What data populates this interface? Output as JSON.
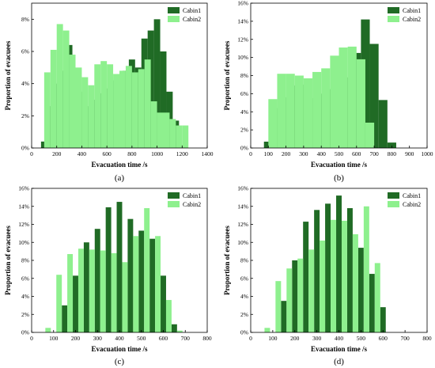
{
  "colors": {
    "cabin1": "#206b25",
    "cabin2": "#8ef08e",
    "axis": "#000000"
  },
  "chart_data": [
    {
      "type": "bar",
      "panel_label": "(a)",
      "xlabel": "Evacuation time /s",
      "ylabel": "Proportion of evacuees",
      "xlim": [
        0,
        1400
      ],
      "ylim": [
        0,
        0.09
      ],
      "x_ticks": [
        0,
        200,
        400,
        600,
        800,
        1000,
        1200,
        1400
      ],
      "x_tick_labels": [
        "0",
        "200",
        "400",
        "600",
        "800",
        "1000",
        "1200",
        "1400"
      ],
      "y_ticks": [
        0,
        0.02,
        0.04,
        0.06,
        0.08
      ],
      "y_tick_labels": [
        "0%",
        "2%",
        "4%",
        "6%",
        "8%"
      ],
      "bin_width": 50,
      "legend_position": "top-right",
      "series": [
        {
          "name": "Cabin1",
          "x": [
            100,
            150,
            200,
            250,
            300,
            350,
            400,
            450,
            500,
            550,
            600,
            650,
            700,
            750,
            800,
            850,
            900,
            950,
            1000,
            1050,
            1100,
            1150,
            1200
          ],
          "values": [
            0.004,
            0.026,
            0.04,
            0.048,
            0.064,
            0.043,
            0.035,
            0.026,
            0.03,
            0.034,
            0.037,
            0.042,
            0.045,
            0.048,
            0.055,
            0.05,
            0.068,
            0.073,
            0.08,
            0.06,
            0.035,
            0.017,
            0.002
          ]
        },
        {
          "name": "Cabin2",
          "x": [
            125,
            175,
            225,
            275,
            325,
            375,
            425,
            475,
            525,
            575,
            625,
            675,
            725,
            775,
            825,
            875,
            925,
            975,
            1025,
            1075,
            1125,
            1175,
            1225
          ],
          "values": [
            0.047,
            0.061,
            0.077,
            0.073,
            0.058,
            0.05,
            0.044,
            0.039,
            0.052,
            0.054,
            0.052,
            0.046,
            0.048,
            0.051,
            0.047,
            0.049,
            0.055,
            0.029,
            0.022,
            0.022,
            0.018,
            0.014,
            0.014
          ]
        }
      ]
    },
    {
      "type": "bar",
      "panel_label": "(b)",
      "xlabel": "Evacuation time /s",
      "ylabel": "Proportion of evacuees",
      "xlim": [
        0,
        1000
      ],
      "ylim": [
        0,
        0.16
      ],
      "x_ticks": [
        0,
        100,
        200,
        300,
        400,
        500,
        600,
        700,
        800,
        900,
        1000
      ],
      "x_tick_labels": [
        "0",
        "100",
        "200",
        "300",
        "400",
        "500",
        "600",
        "700",
        "800",
        "900",
        "1000"
      ],
      "y_ticks": [
        0,
        0.02,
        0.04,
        0.06,
        0.08,
        0.1,
        0.12,
        0.14,
        0.16
      ],
      "y_tick_labels": [
        "0%",
        "2%",
        "4%",
        "6%",
        "8%",
        "10%",
        "12%",
        "14%",
        "16%"
      ],
      "bin_width": 50,
      "legend_position": "top-right",
      "series": [
        {
          "name": "Cabin1",
          "x": [
            100,
            150,
            200,
            250,
            300,
            350,
            400,
            450,
            500,
            550,
            600,
            650,
            700,
            750,
            800
          ],
          "values": [
            0.007,
            0.044,
            0.056,
            0.069,
            0.07,
            0.055,
            0.06,
            0.065,
            0.073,
            0.078,
            0.105,
            0.142,
            0.115,
            0.053,
            0.006
          ]
        },
        {
          "name": "Cabin2",
          "x": [
            125,
            175,
            225,
            275,
            325,
            375,
            425,
            475,
            525,
            575,
            625,
            675
          ],
          "values": [
            0.054,
            0.082,
            0.082,
            0.08,
            0.077,
            0.084,
            0.088,
            0.102,
            0.111,
            0.112,
            0.098,
            0.028
          ]
        }
      ]
    },
    {
      "type": "bar",
      "panel_label": "(c)",
      "xlabel": "Evacuation time /s",
      "ylabel": "Proportion of evacuees",
      "xlim": [
        0,
        800
      ],
      "ylim": [
        0,
        0.16
      ],
      "x_ticks": [
        0,
        100,
        200,
        300,
        400,
        500,
        600,
        700,
        800
      ],
      "x_tick_labels": [
        "0",
        "100",
        "200",
        "300",
        "400",
        "500",
        "600",
        "700",
        "800"
      ],
      "y_ticks": [
        0,
        0.02,
        0.04,
        0.06,
        0.08,
        0.1,
        0.12,
        0.14,
        0.16
      ],
      "y_tick_labels": [
        "0%",
        "2%",
        "4%",
        "6%",
        "8%",
        "10%",
        "12%",
        "14%",
        "16%"
      ],
      "bin_width": 25,
      "legend_position": "top-right",
      "series": [
        {
          "name": "Cabin1",
          "x": [
            150,
            200,
            250,
            300,
            350,
            400,
            450,
            500,
            550,
            600,
            650
          ],
          "values": [
            0.03,
            0.063,
            0.1,
            0.115,
            0.139,
            0.145,
            0.126,
            0.113,
            0.104,
            0.063,
            0.009
          ]
        },
        {
          "name": "Cabin2",
          "x": [
            75,
            125,
            175,
            225,
            275,
            325,
            375,
            425,
            475,
            525,
            575,
            625,
            675
          ],
          "values": [
            0.005,
            0.064,
            0.087,
            0.093,
            0.092,
            0.091,
            0.088,
            0.078,
            0.107,
            0.138,
            0.107,
            0.036,
            0.002
          ]
        }
      ]
    },
    {
      "type": "bar",
      "panel_label": "(d)",
      "xlabel": "Evacuation time /s",
      "ylabel": "Proportion of evacuees",
      "xlim": [
        0,
        800
      ],
      "ylim": [
        0,
        0.16
      ],
      "x_ticks": [
        0,
        100,
        200,
        300,
        400,
        500,
        600,
        700,
        800
      ],
      "x_tick_labels": [
        "0",
        "100",
        "200",
        "300",
        "400",
        "500",
        "600",
        "700",
        "800"
      ],
      "y_ticks": [
        0,
        0.02,
        0.04,
        0.06,
        0.08,
        0.1,
        0.12,
        0.14,
        0.16
      ],
      "y_tick_labels": [
        "0%",
        "2%",
        "4%",
        "6%",
        "8%",
        "10%",
        "12%",
        "14%",
        "16%"
      ],
      "bin_width": 25,
      "legend_position": "top-right",
      "series": [
        {
          "name": "Cabin1",
          "x": [
            150,
            200,
            250,
            300,
            350,
            400,
            450,
            500,
            550,
            600
          ],
          "values": [
            0.035,
            0.08,
            0.123,
            0.136,
            0.143,
            0.152,
            0.138,
            0.094,
            0.065,
            0.028
          ]
        },
        {
          "name": "Cabin2",
          "x": [
            75,
            125,
            175,
            225,
            275,
            325,
            375,
            425,
            475,
            525,
            575
          ],
          "values": [
            0.005,
            0.057,
            0.071,
            0.082,
            0.092,
            0.102,
            0.125,
            0.124,
            0.109,
            0.14,
            0.077
          ]
        }
      ]
    }
  ]
}
